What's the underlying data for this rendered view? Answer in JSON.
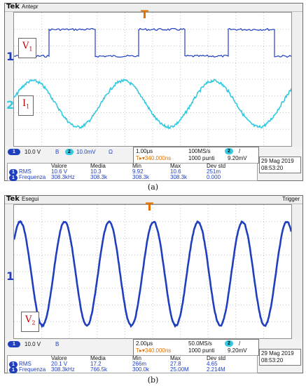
{
  "panel_a": {
    "brand": "Tek",
    "mode": "Antepr",
    "label_v": "V",
    "label_v_sub": "1",
    "label_i": "I",
    "label_i_sub": "1",
    "ch1_marker": "1",
    "ch2_marker": "2",
    "trigger_marker": "T",
    "ch1_scale": "10.0 V",
    "ch2_scale": "10.0mV",
    "ch2_coupling": "Ω",
    "bw_symbol": "B",
    "time_div": "1.00μs",
    "sample_rate": "100MS/s",
    "trig_ch": "2",
    "trig_slope": "/",
    "trig_pos": "T▸▾340.000ns",
    "points": "1000 punti",
    "trig_level": "9.20mV",
    "date": "29 Mag   2019",
    "time": "08:53:20",
    "table": {
      "headers": [
        "Valore",
        "Media",
        "Min",
        "Max",
        "Dev std"
      ],
      "rows": [
        {
          "ch": "1",
          "name": "RMS",
          "values": [
            "10.6 V",
            "10.3",
            "9.92",
            "10.6",
            "251m"
          ]
        },
        {
          "ch": "1",
          "name": "Frequenza",
          "values": [
            "308.3kHz",
            "308.3k",
            "308.3k",
            "308.3k",
            "0.000"
          ]
        }
      ]
    },
    "caption": "(a)"
  },
  "panel_b": {
    "brand": "Tek",
    "mode": "Esegui",
    "trigger_text": "Trigger",
    "label_v": "V",
    "label_v_sub": "2",
    "ch1_marker": "1",
    "trigger_marker": "T",
    "ch1_scale": "10.0 V",
    "bw_symbol": "B",
    "time_div": "2.00μs",
    "sample_rate": "50.0MS/s",
    "trig_ch": "2",
    "trig_slope": "/",
    "trig_pos": "T▸▾340.000ns",
    "points": "1000 punti",
    "trig_level": "9.20mV",
    "date": "29 Mag   2019",
    "time": "08:53:20",
    "table": {
      "headers": [
        "Valore",
        "Media",
        "Min",
        "Max",
        "Dev std"
      ],
      "rows": [
        {
          "ch": "1",
          "name": "RMS",
          "values": [
            "20.1 V",
            "17.2",
            "266m",
            "27.8",
            "4.65"
          ]
        },
        {
          "ch": "1",
          "name": "Frequenza",
          "values": [
            "308.3kHz",
            "766.5k",
            "300.0k",
            "25.00M",
            "2.214M"
          ]
        }
      ]
    },
    "caption": "(b)"
  },
  "colors": {
    "ch1": "#1f3fbf",
    "ch2": "#33c9e0",
    "label": "#c00000",
    "trigger": "#e07000",
    "grid": "#b8b8b8"
  }
}
